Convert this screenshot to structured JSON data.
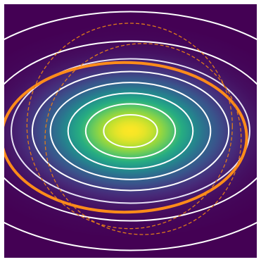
{
  "chart_data": {
    "type": "heatmap",
    "title": "",
    "xlabel": "",
    "ylabel": "",
    "axes_visible": false,
    "colormap": "viridis",
    "field": {
      "kind": "gaussian",
      "center": [
        0,
        0
      ],
      "sigma_x": 1.26,
      "sigma_y": 0.76,
      "value_range": [
        0,
        1
      ]
    },
    "xlim": [
      -3.0,
      3.0
    ],
    "ylim": [
      -3.0,
      3.0
    ],
    "contour_levels": [
      {
        "level": 0.001,
        "color": "#ffffff",
        "style": "solid"
      },
      {
        "level": 0.02,
        "color": "#ffffff",
        "style": "solid"
      },
      {
        "level": 0.08,
        "color": "#e8e3f5",
        "style": "solid"
      },
      {
        "level": 0.18,
        "color": "#ffffff",
        "style": "solid"
      },
      {
        "level": 0.32,
        "color": "#ffffff",
        "style": "solid"
      },
      {
        "level": 0.5,
        "color": "#ffffff",
        "style": "solid"
      },
      {
        "level": 0.7,
        "color": "#ffffff",
        "style": "solid"
      },
      {
        "level": 0.88,
        "color": "#ffffff",
        "style": "solid"
      }
    ],
    "overlay_ellipses": [
      {
        "center": [
          -0.15,
          -0.15
        ],
        "rx": 2.91,
        "ry": 1.77,
        "color": "#ff8c1a",
        "style": "solid",
        "width": "thick"
      },
      {
        "center": [
          -0.02,
          0.12
        ],
        "rx": 2.44,
        "ry": 2.43,
        "color": "#e07b1a",
        "style": "dashed",
        "width": "thin"
      },
      {
        "center": [
          0.3,
          -0.19
        ],
        "rx": 2.33,
        "ry": 2.26,
        "color": "#e07b1a",
        "style": "dashed",
        "width": "thin"
      }
    ],
    "colors": {
      "background_low": "#440154",
      "peak": "#fde725",
      "contour": "#ffffff",
      "overlay": "#ff8c1a"
    }
  }
}
